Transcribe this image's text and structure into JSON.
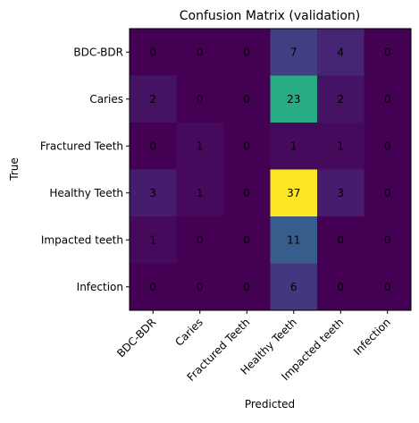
{
  "chart_data": {
    "type": "heatmap",
    "title": "Confusion Matrix (validation)",
    "xlabel": "Predicted",
    "ylabel": "True",
    "rows": [
      "BDC-BDR",
      "Caries",
      "Fractured Teeth",
      "Healthy Teeth",
      "Impacted teeth",
      "Infection"
    ],
    "columns": [
      "BDC-BDR",
      "Caries",
      "Fractured Teeth",
      "Healthy Teeth",
      "Impacted teeth",
      "Infection"
    ],
    "values": [
      [
        0,
        0,
        0,
        7,
        4,
        0
      ],
      [
        2,
        0,
        0,
        23,
        2,
        0
      ],
      [
        0,
        1,
        0,
        1,
        1,
        0
      ],
      [
        3,
        1,
        0,
        37,
        3,
        0
      ],
      [
        1,
        0,
        0,
        11,
        0,
        0
      ],
      [
        0,
        0,
        0,
        6,
        0,
        0
      ]
    ],
    "colormap": "viridis",
    "value_range": [
      0,
      37
    ],
    "grid": false
  }
}
